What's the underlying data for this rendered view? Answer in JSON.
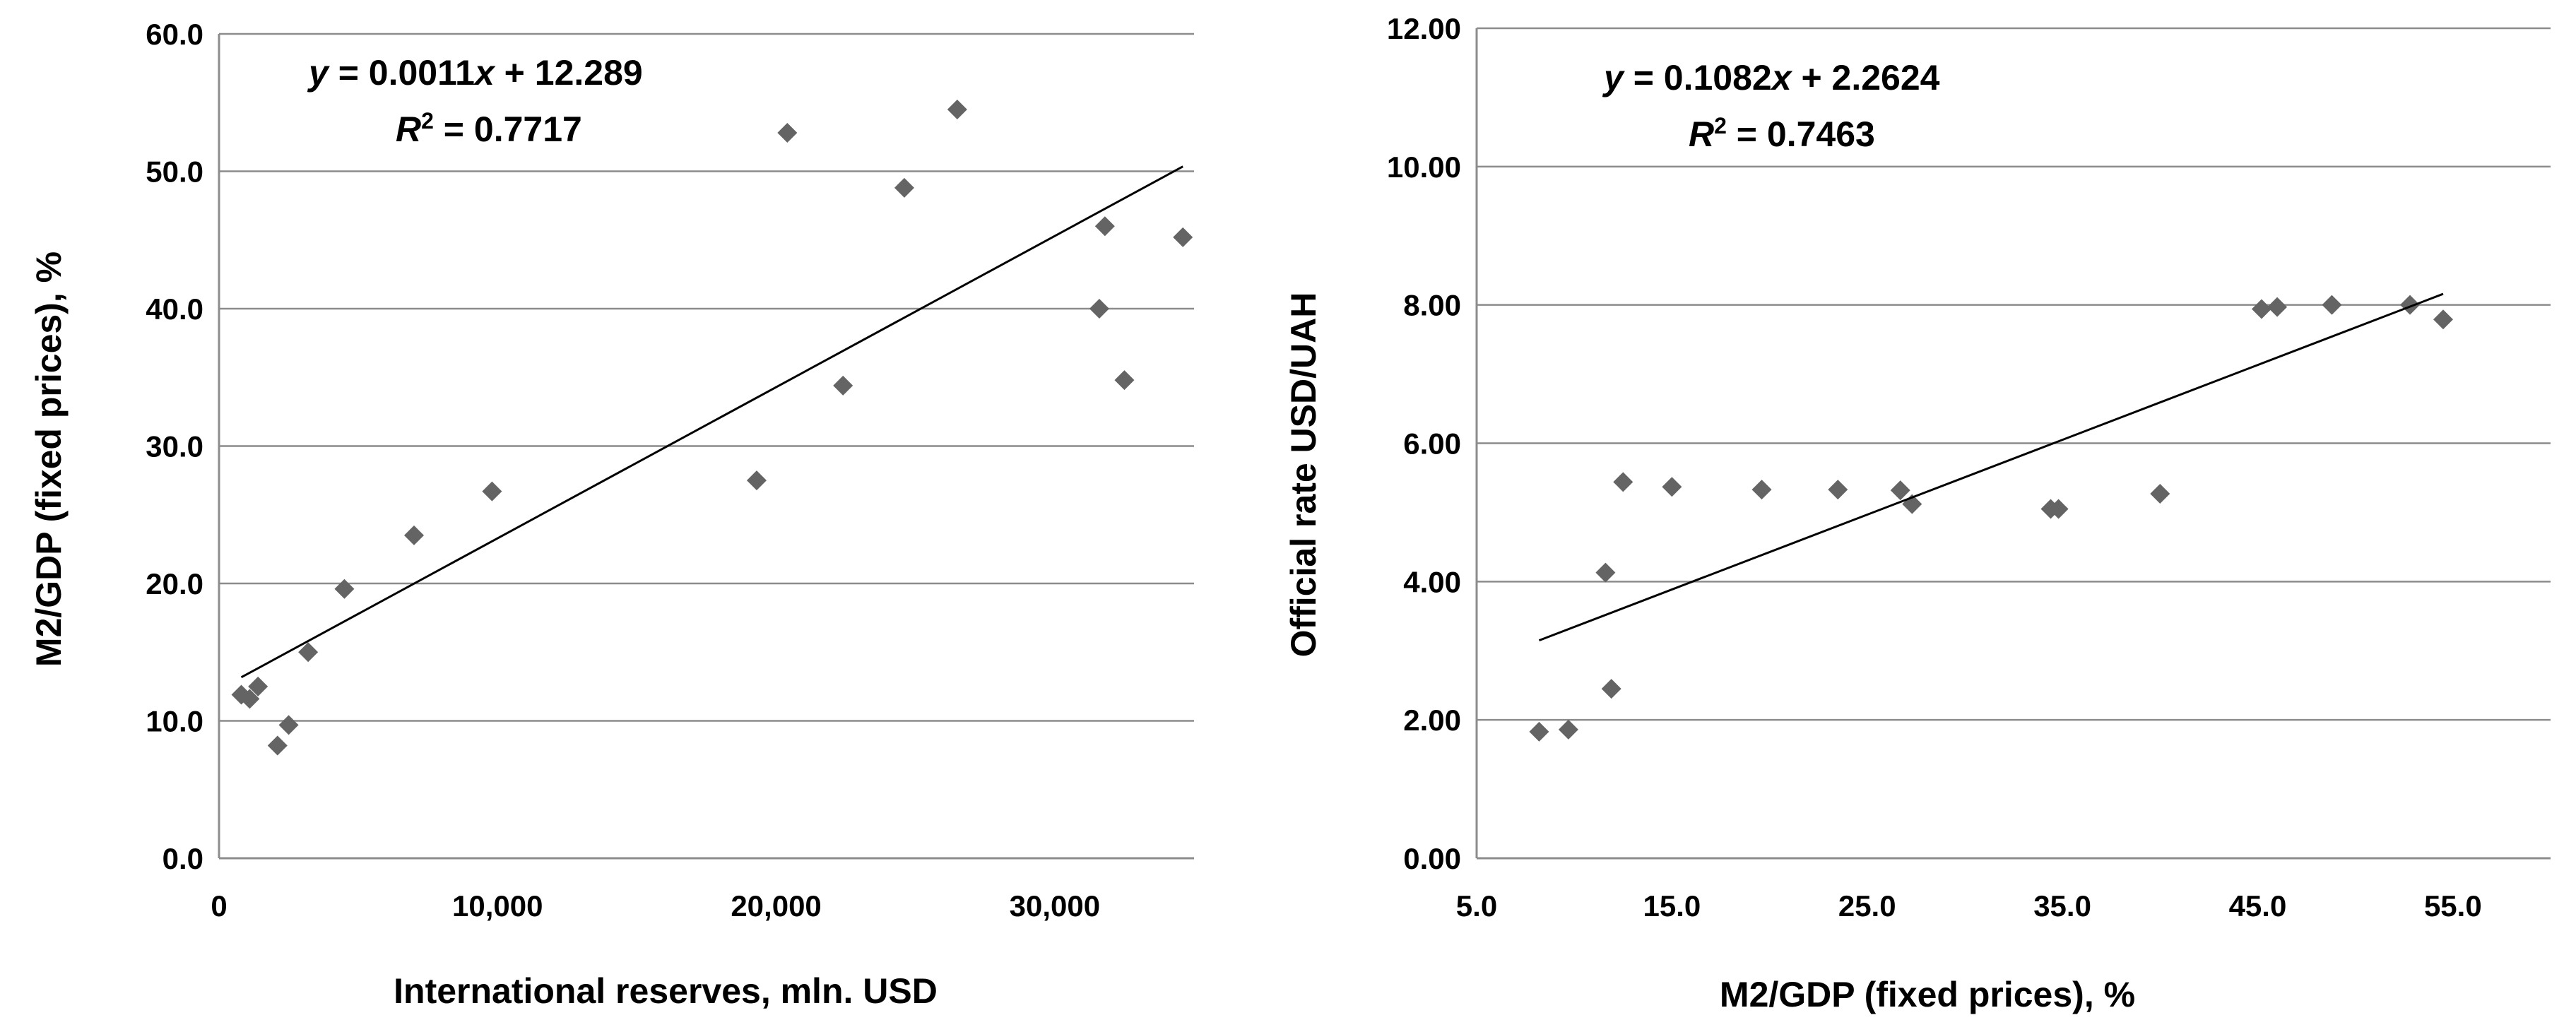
{
  "colors": {
    "marker": "#646464",
    "grid": "#8c8c8c",
    "axis": "#8c8c8c",
    "trendline": "#000000",
    "text": "#000000"
  },
  "chart_data": [
    {
      "type": "scatter",
      "title": "",
      "xlabel": "International reserves, mln. USD",
      "ylabel": "M2/GDP (fixed prices), %",
      "xlim": [
        0,
        35000
      ],
      "ylim": [
        0,
        60
      ],
      "grid": "horizontal",
      "x_ticks": [
        0,
        10000,
        20000,
        30000
      ],
      "x_tick_labels": [
        "0",
        "10,000",
        "20,000",
        "30,000"
      ],
      "y_ticks": [
        0,
        10,
        20,
        30,
        40,
        50,
        60
      ],
      "y_tick_labels": [
        "0.0",
        "10.0",
        "20.0",
        "30.0",
        "40.0",
        "50.0",
        "60.0"
      ],
      "points": [
        {
          "x": 800,
          "y": 11.9
        },
        {
          "x": 1100,
          "y": 11.6
        },
        {
          "x": 1400,
          "y": 12.5
        },
        {
          "x": 2100,
          "y": 8.2
        },
        {
          "x": 2500,
          "y": 9.7
        },
        {
          "x": 3200,
          "y": 15.0
        },
        {
          "x": 4500,
          "y": 19.6
        },
        {
          "x": 7000,
          "y": 23.5
        },
        {
          "x": 9800,
          "y": 26.7
        },
        {
          "x": 19300,
          "y": 27.5
        },
        {
          "x": 20400,
          "y": 52.8
        },
        {
          "x": 22400,
          "y": 34.4
        },
        {
          "x": 24600,
          "y": 48.8
        },
        {
          "x": 26500,
          "y": 54.5
        },
        {
          "x": 31600,
          "y": 40.0
        },
        {
          "x": 31800,
          "y": 46.0
        },
        {
          "x": 32500,
          "y": 34.8
        },
        {
          "x": 34600,
          "y": 45.2
        }
      ],
      "trendline": {
        "slope": 0.0011,
        "intercept": 12.289,
        "x_range": [
          800,
          34600
        ]
      },
      "equation": {
        "y_label": "y",
        "eq_rest": " = 0.0011",
        "x_label": "x",
        "eq_const": " + 12.289",
        "r_label": "R",
        "r_sup": "2",
        "r_value": " = 0.7717"
      }
    },
    {
      "type": "scatter",
      "title": "",
      "xlabel": "M2/GDP (fixed prices), %",
      "ylabel": "Official rate USD/UAH",
      "xlim": [
        5,
        60
      ],
      "ylim": [
        0,
        12
      ],
      "grid": "horizontal",
      "x_ticks": [
        5,
        15,
        25,
        35,
        45,
        55
      ],
      "x_tick_labels": [
        "5.0",
        "15.0",
        "25.0",
        "35.0",
        "45.0",
        "55.0"
      ],
      "y_ticks": [
        0,
        2,
        4,
        6,
        8,
        10,
        12
      ],
      "y_tick_labels": [
        "0.00",
        "2.00",
        "4.00",
        "6.00",
        "8.00",
        "10.00",
        "12.00"
      ],
      "points": [
        {
          "x": 8.2,
          "y": 1.83
        },
        {
          "x": 9.7,
          "y": 1.86
        },
        {
          "x": 11.6,
          "y": 4.13
        },
        {
          "x": 11.9,
          "y": 2.45
        },
        {
          "x": 12.5,
          "y": 5.44
        },
        {
          "x": 15.0,
          "y": 5.37
        },
        {
          "x": 19.6,
          "y": 5.33
        },
        {
          "x": 23.5,
          "y": 5.33
        },
        {
          "x": 26.7,
          "y": 5.32
        },
        {
          "x": 27.3,
          "y": 5.12
        },
        {
          "x": 34.4,
          "y": 5.05
        },
        {
          "x": 34.8,
          "y": 5.05
        },
        {
          "x": 40.0,
          "y": 5.27
        },
        {
          "x": 45.2,
          "y": 7.94
        },
        {
          "x": 46.0,
          "y": 7.97
        },
        {
          "x": 48.8,
          "y": 8.0
        },
        {
          "x": 52.8,
          "y": 8.0
        },
        {
          "x": 54.5,
          "y": 7.79
        }
      ],
      "trendline": {
        "slope": 0.1082,
        "intercept": 2.2624,
        "x_range": [
          8.2,
          54.5
        ]
      },
      "equation": {
        "y_label": "y",
        "eq_rest": " = 0.1082",
        "x_label": "x",
        "eq_const": " + 2.2624",
        "r_label": "R",
        "r_sup": "2",
        "r_value": " = 0.7463"
      }
    }
  ]
}
